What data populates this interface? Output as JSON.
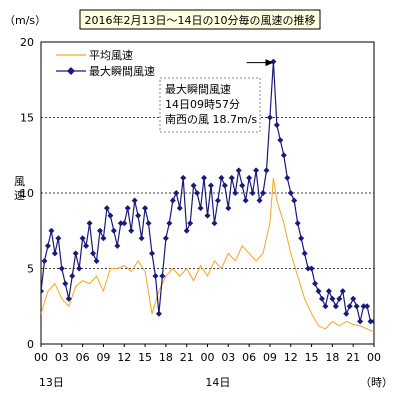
{
  "chart_data": {
    "type": "line",
    "title": "2016年2月13日～14日の10分毎の風速の推移",
    "unit_label": "（m/s）",
    "ylabel": "風速",
    "x_unit_label": "（時）",
    "ylim": [
      0,
      20
    ],
    "yticks": [
      0,
      5,
      10,
      15,
      20
    ],
    "ygrid": [
      5,
      10,
      15
    ],
    "x_hours": [
      0,
      48
    ],
    "x_ticks": [
      {
        "hour": 0,
        "label": "00"
      },
      {
        "hour": 3,
        "label": "03"
      },
      {
        "hour": 6,
        "label": "06"
      },
      {
        "hour": 9,
        "label": "09"
      },
      {
        "hour": 12,
        "label": "12"
      },
      {
        "hour": 15,
        "label": "15"
      },
      {
        "hour": 18,
        "label": "18"
      },
      {
        "hour": 21,
        "label": "21"
      },
      {
        "hour": 24,
        "label": "00"
      },
      {
        "hour": 27,
        "label": "03"
      },
      {
        "hour": 30,
        "label": "06"
      },
      {
        "hour": 33,
        "label": "09"
      },
      {
        "hour": 36,
        "label": "12"
      },
      {
        "hour": 39,
        "label": "15"
      },
      {
        "hour": 42,
        "label": "18"
      },
      {
        "hour": 45,
        "label": "21"
      },
      {
        "hour": 48,
        "label": "00"
      }
    ],
    "day_labels": [
      {
        "hour": 1.5,
        "label": "13日"
      },
      {
        "hour": 25.5,
        "label": "14日"
      }
    ],
    "legend": {
      "placement": "top-left"
    },
    "series": [
      {
        "name": "平均風速",
        "color": "#f5a623",
        "marker": "none",
        "x": [
          0,
          1,
          2,
          3,
          4,
          5,
          6,
          7,
          8,
          9,
          10,
          11,
          12,
          13,
          14,
          15,
          16,
          17,
          18,
          19,
          20,
          21,
          22,
          23,
          24,
          25,
          26,
          27,
          28,
          29,
          30,
          31,
          32,
          33,
          33.5,
          34,
          35,
          36,
          37,
          38,
          39,
          40,
          41,
          42,
          43,
          44,
          45,
          46,
          47,
          48
        ],
        "y": [
          2.0,
          3.5,
          4.0,
          3.0,
          2.5,
          3.8,
          4.2,
          4.0,
          4.5,
          3.5,
          5.0,
          5.0,
          5.2,
          4.8,
          5.5,
          4.8,
          2.0,
          3.5,
          4.5,
          5.0,
          4.5,
          5.0,
          4.2,
          5.2,
          4.5,
          5.5,
          5.0,
          6.0,
          5.5,
          6.5,
          6.0,
          5.5,
          6.0,
          8.0,
          11.0,
          9.5,
          8.0,
          6.0,
          4.5,
          3.0,
          2.0,
          1.2,
          1.0,
          1.5,
          1.2,
          1.5,
          1.3,
          1.2,
          1.0,
          0.8
        ]
      },
      {
        "name": "最大瞬間風速",
        "color": "#1a1a7a",
        "marker": "diamond",
        "x": [
          0,
          0.5,
          1,
          1.5,
          2,
          2.5,
          3,
          3.5,
          4,
          4.5,
          5,
          5.5,
          6,
          6.5,
          7,
          7.5,
          8,
          8.5,
          9,
          9.5,
          10,
          10.5,
          11,
          11.5,
          12,
          12.5,
          13,
          13.5,
          14,
          14.5,
          15,
          15.5,
          16,
          16.5,
          17,
          17.5,
          18,
          18.5,
          19,
          19.5,
          20,
          20.5,
          21,
          21.5,
          22,
          22.5,
          23,
          23.5,
          24,
          24.5,
          25,
          25.5,
          26,
          26.5,
          27,
          27.5,
          28,
          28.5,
          29,
          29.5,
          30,
          30.5,
          31,
          31.5,
          32,
          32.5,
          33,
          33.5,
          34,
          34.5,
          35,
          35.5,
          36,
          36.5,
          37,
          37.5,
          38,
          38.5,
          39,
          39.5,
          40,
          40.5,
          41,
          41.5,
          42,
          42.5,
          43,
          43.5,
          44,
          44.5,
          45,
          45.5,
          46,
          46.5,
          47,
          47.5,
          48
        ],
        "y": [
          3.5,
          5.5,
          6.5,
          7.5,
          6.0,
          7.0,
          5.0,
          4.0,
          3.0,
          4.5,
          6.0,
          5.0,
          7.0,
          6.5,
          8.0,
          6.0,
          5.5,
          7.5,
          7.0,
          9.0,
          8.5,
          7.5,
          6.5,
          8.0,
          8.0,
          9.0,
          7.5,
          9.5,
          8.5,
          7.0,
          9.0,
          8.0,
          6.0,
          4.5,
          2.0,
          4.5,
          7.0,
          8.0,
          9.5,
          10.0,
          9.0,
          11.0,
          7.5,
          8.0,
          10.5,
          10.0,
          9.0,
          11.0,
          8.5,
          10.5,
          8.0,
          9.5,
          11.0,
          10.5,
          9.0,
          11.0,
          10.0,
          11.5,
          10.5,
          9.5,
          11.0,
          10.0,
          11.5,
          9.5,
          10.0,
          11.5,
          15.0,
          18.7,
          14.5,
          13.5,
          12.5,
          11.0,
          10.0,
          9.5,
          8.0,
          7.0,
          6.0,
          5.0,
          5.0,
          4.0,
          3.5,
          3.0,
          2.5,
          3.5,
          3.0,
          2.5,
          3.0,
          3.5,
          2.0,
          2.5,
          3.0,
          2.5,
          1.5,
          2.5,
          2.5,
          1.5,
          1.5
        ]
      }
    ],
    "annotation": {
      "lines": [
        "最大瞬間風速",
        "14日09時57分",
        "南西の風 18.7m/s"
      ],
      "point": {
        "hour": 33.95,
        "value": 18.7
      }
    }
  }
}
